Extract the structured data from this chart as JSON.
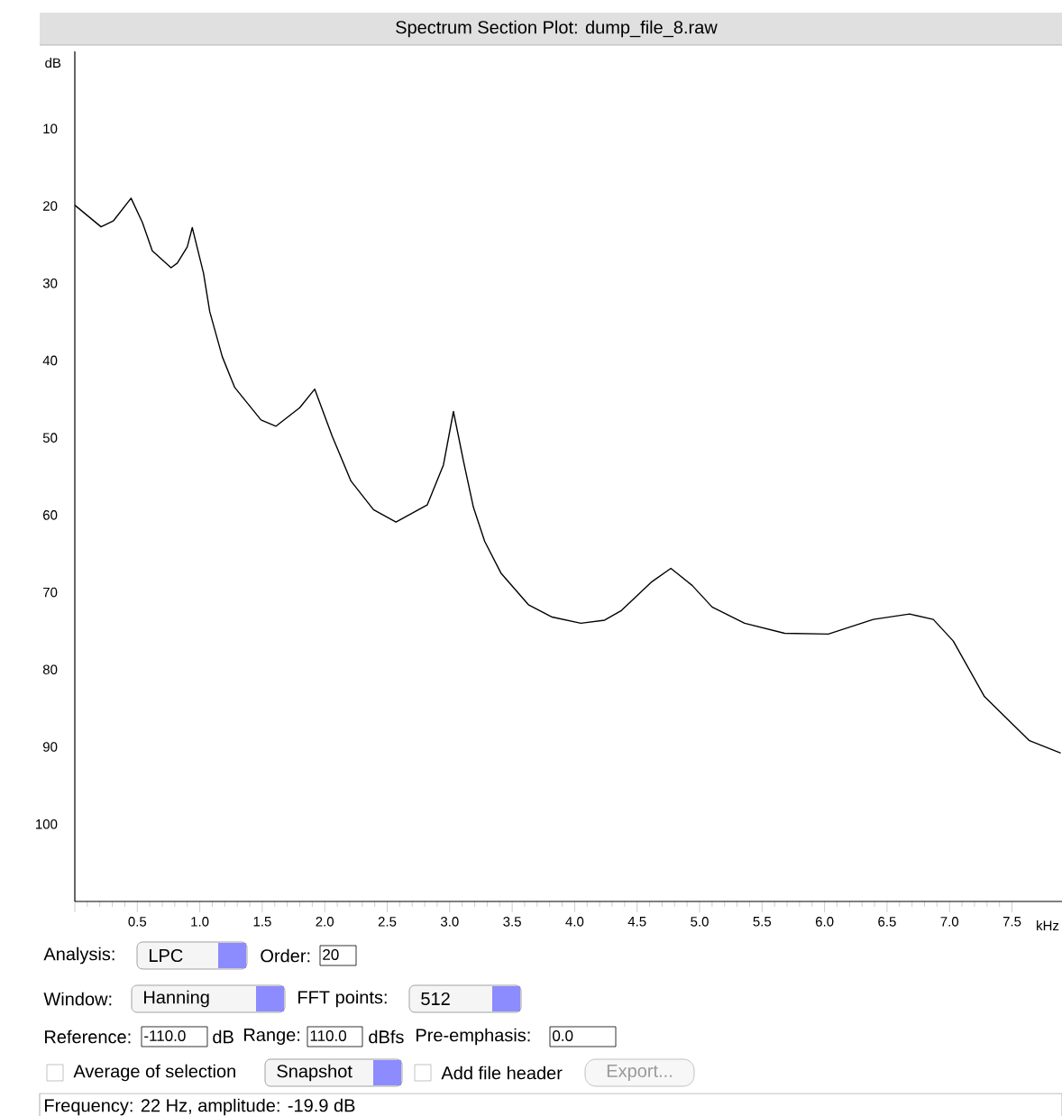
{
  "chart_data": {
    "type": "line",
    "title": "Spectrum Section Plot: dump_file_8.raw",
    "xlabel": "kHz",
    "ylabel": "dB",
    "xlim": [
      0,
      7.9
    ],
    "ylim": [
      110,
      0
    ],
    "xticks": [
      {
        "value": 0,
        "label": null
      },
      0.5,
      {
        "value": 1,
        "label": "1.0"
      },
      1.5,
      {
        "value": 2,
        "label": "2.0"
      },
      2.5,
      {
        "value": 3,
        "label": "3.0"
      },
      3.5,
      {
        "value": 4,
        "label": "4.0"
      },
      4.5,
      {
        "value": 5,
        "label": "5.0"
      },
      5.5,
      {
        "value": 6,
        "label": "6.0"
      },
      6.5,
      {
        "value": 7,
        "label": "7.0"
      },
      7.5
    ],
    "yticks": [
      10,
      20,
      30,
      40,
      50,
      60,
      70,
      80,
      90,
      100
    ],
    "series": [
      {
        "color": "#000000",
        "x": [
          0,
          0.21,
          0.31,
          0.45,
          0.54,
          0.62,
          0.77,
          0.82,
          0.9,
          0.94,
          1.03,
          1.08,
          1.18,
          1.28,
          1.49,
          1.61,
          1.8,
          1.92,
          2.06,
          2.21,
          2.39,
          2.57,
          2.82,
          2.95,
          3.03,
          3.11,
          3.19,
          3.28,
          3.41,
          3.63,
          3.82,
          4.05,
          4.24,
          4.37,
          4.62,
          4.77,
          4.94,
          5.1,
          5.36,
          5.68,
          6.03,
          6.39,
          6.68,
          6.87,
          7.03,
          7.28,
          7.64,
          7.89
        ],
        "values": [
          19.9,
          22.7,
          21.9,
          19.0,
          22.1,
          25.8,
          28.0,
          27.4,
          25.3,
          22.8,
          28.7,
          33.7,
          39.5,
          43.5,
          47.7,
          48.5,
          46.1,
          43.7,
          49.8,
          55.6,
          59.3,
          60.9,
          58.7,
          53.5,
          46.6,
          53.0,
          59.0,
          63.4,
          67.5,
          71.6,
          73.2,
          74.0,
          73.6,
          72.4,
          68.6,
          66.9,
          69.1,
          71.9,
          74.0,
          75.3,
          75.4,
          73.5,
          72.8,
          73.5,
          76.3,
          83.5,
          89.2,
          90.8
        ]
      }
    ],
    "annotations": [
      "Analysis:",
      "LPC",
      "Order:",
      "20",
      "Window:",
      "Hanning",
      "FFT points:",
      "512",
      "Reference:",
      "-110.0",
      "dB",
      "Range:",
      "110.0",
      "dBfs",
      "Pre-emphasis:",
      "0.0",
      "Average of selection",
      "Snapshot",
      "Add file header",
      "Export...",
      "Frequency: 22 Hz, amplitude: -19.9 dB"
    ]
  }
}
